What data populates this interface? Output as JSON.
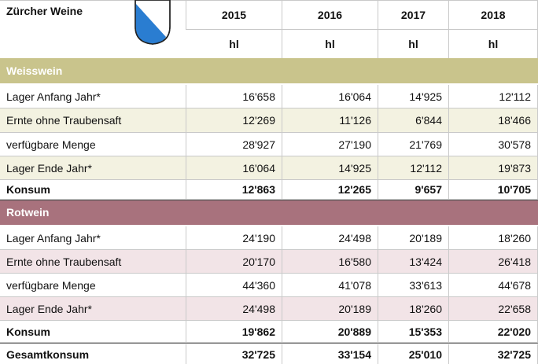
{
  "table": {
    "title": "Zürcher Weine",
    "years": [
      "2015",
      "2016",
      "2017",
      "2018"
    ],
    "unit": "hl",
    "sections": [
      {
        "name": "Weisswein",
        "rows": [
          {
            "label": "Lager Anfang Jahr*",
            "values": [
              "16'658",
              "16'064",
              "14'925",
              "12'112"
            ]
          },
          {
            "label": "Ernte ohne Traubensaft",
            "values": [
              "12'269",
              "11'126",
              "6'844",
              "18'466"
            ]
          },
          {
            "label": "verfügbare Menge",
            "values": [
              "28'927",
              "27'190",
              "21'769",
              "30'578"
            ]
          },
          {
            "label": "Lager Ende Jahr*",
            "values": [
              "16'064",
              "14'925",
              "12'112",
              "19'873"
            ]
          },
          {
            "label": "Konsum",
            "values": [
              "12'863",
              "12'265",
              "9'657",
              "10'705"
            ]
          }
        ]
      },
      {
        "name": "Rotwein",
        "rows": [
          {
            "label": "Lager Anfang Jahr*",
            "values": [
              "24'190",
              "24'498",
              "20'189",
              "18'260"
            ]
          },
          {
            "label": "Ernte ohne Traubensaft",
            "values": [
              "20'170",
              "16'580",
              "13'424",
              "26'418"
            ]
          },
          {
            "label": "verfügbare Menge",
            "values": [
              "44'360",
              "41'078",
              "33'613",
              "44'678"
            ]
          },
          {
            "label": "Lager Ende Jahr*",
            "values": [
              "24'498",
              "20'189",
              "18'260",
              "22'658"
            ]
          },
          {
            "label": "Konsum",
            "values": [
              "19'862",
              "20'889",
              "15'353",
              "22'020"
            ]
          }
        ]
      }
    ],
    "total": {
      "label": "Gesamtkonsum",
      "values": [
        "32'725",
        "33'154",
        "25'010",
        "32'725"
      ]
    }
  }
}
